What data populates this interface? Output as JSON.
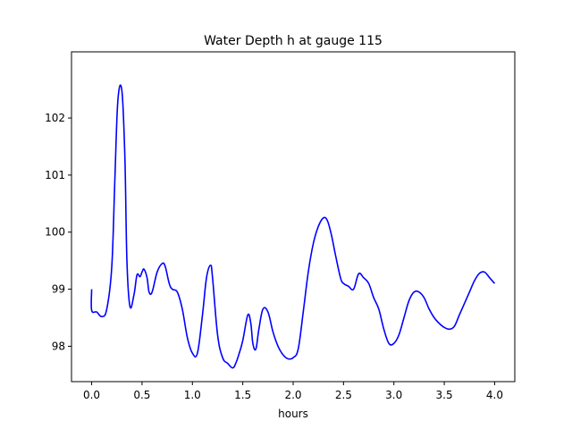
{
  "chart_data": {
    "type": "line",
    "title": "Water Depth h at gauge 115",
    "xlabel": "hours",
    "ylabel": "",
    "xlim": [
      -0.2,
      4.2
    ],
    "ylim": [
      97.38,
      103.16
    ],
    "xticks": [
      0.0,
      0.5,
      1.0,
      1.5,
      2.0,
      2.5,
      3.0,
      3.5,
      4.0
    ],
    "xtick_labels": [
      "0.0",
      "0.5",
      "1.0",
      "1.5",
      "2.0",
      "2.5",
      "3.0",
      "3.5",
      "4.0"
    ],
    "yticks": [
      98,
      99,
      100,
      101,
      102
    ],
    "ytick_labels": [
      "98",
      "99",
      "100",
      "101",
      "102"
    ],
    "grid": false,
    "line_color": "#0000ff",
    "series": [
      {
        "x": [
          0.0,
          0.0,
          0.05,
          0.1,
          0.15,
          0.2,
          0.23,
          0.26,
          0.3,
          0.33,
          0.35,
          0.38,
          0.42,
          0.45,
          0.48,
          0.5,
          0.52,
          0.55,
          0.57,
          0.6,
          0.65,
          0.7,
          0.73,
          0.77,
          0.8,
          0.85,
          0.9,
          0.95,
          1.0,
          1.05,
          1.1,
          1.14,
          1.18,
          1.2,
          1.25,
          1.3,
          1.35,
          1.4,
          1.43,
          1.46,
          1.5,
          1.55,
          1.58,
          1.6,
          1.63,
          1.66,
          1.7,
          1.75,
          1.8,
          1.85,
          1.9,
          1.95,
          2.0,
          2.05,
          2.1,
          2.15,
          2.2,
          2.25,
          2.3,
          2.34,
          2.38,
          2.42,
          2.47,
          2.5,
          2.55,
          2.6,
          2.65,
          2.7,
          2.75,
          2.8,
          2.85,
          2.9,
          2.95,
          3.0,
          3.05,
          3.1,
          3.15,
          3.2,
          3.25,
          3.3,
          3.35,
          3.4,
          3.45,
          3.5,
          3.55,
          3.6,
          3.65,
          3.7,
          3.75,
          3.8,
          3.85,
          3.9,
          3.95,
          4.0
        ],
        "y": [
          99.0,
          98.63,
          98.6,
          98.52,
          98.65,
          99.4,
          100.9,
          102.3,
          102.48,
          101.3,
          99.5,
          98.7,
          98.9,
          99.25,
          99.22,
          99.3,
          99.35,
          99.2,
          98.95,
          98.95,
          99.3,
          99.45,
          99.4,
          99.1,
          99.0,
          98.95,
          98.65,
          98.15,
          97.88,
          97.88,
          98.55,
          99.2,
          99.42,
          99.2,
          98.2,
          97.8,
          97.7,
          97.62,
          97.7,
          97.85,
          98.1,
          98.55,
          98.4,
          98.05,
          97.95,
          98.3,
          98.65,
          98.6,
          98.25,
          98.0,
          97.85,
          97.78,
          97.8,
          97.95,
          98.6,
          99.3,
          99.8,
          100.1,
          100.25,
          100.2,
          99.95,
          99.6,
          99.2,
          99.1,
          99.05,
          99.0,
          99.27,
          99.2,
          99.1,
          98.85,
          98.65,
          98.3,
          98.05,
          98.05,
          98.2,
          98.5,
          98.8,
          98.95,
          98.95,
          98.85,
          98.65,
          98.5,
          98.4,
          98.33,
          98.3,
          98.35,
          98.55,
          98.75,
          98.95,
          99.15,
          99.28,
          99.3,
          99.2,
          99.1
        ]
      }
    ]
  }
}
